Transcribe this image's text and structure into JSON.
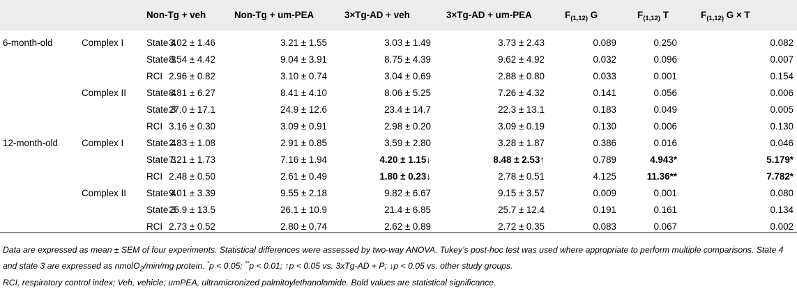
{
  "headers": {
    "h1": "Non-Tg + veh",
    "h2": "Non-Tg + um-PEA",
    "h3": "3×Tg-AD + veh",
    "h4": "3×Tg-AD + um-PEA",
    "f_label": "F",
    "f_sub": "(1,12)",
    "h5_suffix": "G",
    "h6_suffix": "T",
    "h7_suffix": "G × T"
  },
  "rows": [
    {
      "age": "6-month-old",
      "complex": "Complex I",
      "state": "State 4",
      "v1": "3.02 ± 1.46",
      "v2": "3.21 ± 1.55",
      "v3": "3.03 ± 1.49",
      "v4": "3.73 ± 2.43",
      "f1": "0.089",
      "f2": "0.250",
      "f3": "0.082"
    },
    {
      "age": "",
      "complex": "",
      "state": "State 3",
      "v1": "8.54 ± 4.42",
      "v2": "9.04 ± 3.91",
      "v3": "8.75 ± 4.39",
      "v4": "9.62 ± 4.92",
      "f1": "0.032",
      "f2": "0.096",
      "f3": "0.007"
    },
    {
      "age": "",
      "complex": "",
      "state": "RCI",
      "v1": "2.96 ± 0.82",
      "v2": "3.10 ± 0.74",
      "v3": "3.04 ± 0.69",
      "v4": "2.88 ± 0.80",
      "f1": "0.033",
      "f2": "0.001",
      "f3": "0.154"
    },
    {
      "age": "",
      "complex": "Complex II",
      "state": "State 4",
      "v1": "8.81 ± 6.27",
      "v2": "8.41 ± 4.10",
      "v3": "8.06 ± 5.25",
      "v4": "7.26 ± 4.32",
      "f1": "0.141",
      "f2": "0.056",
      "f3": "0.006"
    },
    {
      "age": "",
      "complex": "",
      "state": "State 3",
      "v1": "27.0 ± 17.1",
      "v2": "24.9 ± 12.6",
      "v3": "23.4 ± 14.7",
      "v4": "22.3 ± 13.1",
      "f1": "0.183",
      "f2": "0.049",
      "f3": "0.005"
    },
    {
      "age": "",
      "complex": "",
      "state": "RCI",
      "v1": "3.16 ± 0.30",
      "v2": "3.09 ± 0.91",
      "v3": "2.98 ± 0.20",
      "v4": "3.09 ± 0.19",
      "f1": "0.130",
      "f2": "0.006",
      "f3": "0.130"
    },
    {
      "age": "12-month-old",
      "complex": "Complex I",
      "state": "State 4",
      "v1": "2.83 ± 1.08",
      "v2": "2.91 ± 0.85",
      "v3": "3.59 ± 2.80",
      "v4": "3.28 ± 1.87",
      "f1": "0.386",
      "f2": "0.016",
      "f3": "0.046"
    },
    {
      "age": "",
      "complex": "",
      "state": "State 3",
      "v1": "7.21 ± 1.73",
      "v2": "7.16 ± 1.94",
      "v3": "4.20 ± 1.15↓",
      "v4": "8.48 ± 2.53↑",
      "f1": "0.789",
      "f2": "4.943*",
      "f3": "5.179*",
      "bold": [
        "v3",
        "v4",
        "f2",
        "f3"
      ]
    },
    {
      "age": "",
      "complex": "",
      "state": "RCI",
      "v1": "2.48 ± 0.50",
      "v2": "2.61 ± 0.49",
      "v3": "1.80 ± 0.23↓",
      "v4": "2.78 ± 0.51",
      "f1": "4.125",
      "f2": "11.36**",
      "f3": "7.782*",
      "bold": [
        "v3",
        "f2",
        "f3"
      ]
    },
    {
      "age": "",
      "complex": "Complex II",
      "state": "State 4",
      "v1": "9.01 ± 3.39",
      "v2": "9.55 ± 2.18",
      "v3": "9.82 ± 6.67",
      "v4": "9.15 ± 3.57",
      "f1": "0.009",
      "f2": "0.001",
      "f3": "0.080"
    },
    {
      "age": "",
      "complex": "",
      "state": "State 3",
      "v1": "25.9 ± 13.5",
      "v2": "26.1 ± 10.9",
      "v3": "21.4 ± 6.85",
      "v4": "25.7 ± 12.4",
      "f1": "0.191",
      "f2": "0.161",
      "f3": "0.134"
    },
    {
      "age": "",
      "complex": "",
      "state": "RCI",
      "v1": "2.73 ± 0.52",
      "v2": "2.80 ± 0.74",
      "v3": "2.62 ± 0.89",
      "v4": "2.72 ± 0.35",
      "f1": "0.083",
      "f2": "0.067",
      "f3": "0.002"
    }
  ],
  "footnote": {
    "line1a": "Data are expressed as mean ± SEM of four experiments. Statistical differences were assessed by two-way ANOVA. Tukey’s post-hoc test was used where appropriate to perform multiple comparisons. State 4 and state 3 are expressed as nmolO",
    "o2_sub": "2",
    "line1b": "/min/mg protein. ",
    "star1": "*",
    "p1": "p < 0.05; ",
    "star2": "**",
    "p2": "p < 0.01; ↑p < 0.05 vs. 3xTg-AD + P; ↓p < 0.05 vs. other study groups.",
    "line2": "RCI, respiratory control index; Veh, vehicle; umPEA, ultramicronized palmitoylethanolamide. Bold values are statistical significance."
  }
}
